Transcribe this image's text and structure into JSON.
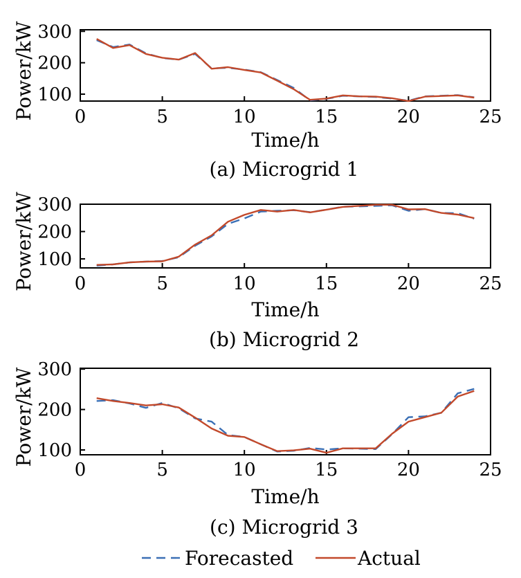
{
  "colors": {
    "forecasted": "#3a6fb5",
    "actual": "#c2492b",
    "axis": "#000000"
  },
  "legend": [
    {
      "key": "forecasted",
      "label": "Forecasted",
      "style": "dashed"
    },
    {
      "key": "actual",
      "label": "Actual",
      "style": "solid"
    }
  ],
  "chart_data": [
    {
      "type": "line",
      "caption": "(a) Microgrid 1",
      "xlabel": "Time/h",
      "ylabel": "Power/kW",
      "xlim": [
        0,
        25
      ],
      "ylim": [
        78,
        305
      ],
      "xticks": [
        0,
        5,
        10,
        15,
        20,
        25
      ],
      "yticks": [
        100,
        200,
        300
      ],
      "x": [
        1,
        2,
        3,
        4,
        5,
        6,
        7,
        8,
        9,
        10,
        11,
        12,
        13,
        14,
        15,
        16,
        17,
        18,
        19,
        20,
        21,
        22,
        23,
        24
      ],
      "series": [
        {
          "name": "Forecasted",
          "values": [
            272,
            250,
            258,
            230,
            215,
            210,
            228,
            182,
            184,
            178,
            170,
            145,
            120,
            80,
            85,
            95,
            93,
            91,
            86,
            79,
            93,
            95,
            97,
            90
          ]
        },
        {
          "name": "Actual",
          "values": [
            276,
            247,
            256,
            228,
            216,
            210,
            231,
            181,
            186,
            177,
            169,
            143,
            116,
            82,
            86,
            96,
            93,
            92,
            87,
            78,
            92,
            94,
            96,
            89
          ]
        }
      ]
    },
    {
      "type": "line",
      "caption": "(b) Microgrid 2",
      "xlabel": "Time/h",
      "ylabel": "Power/kW",
      "xlim": [
        0,
        25
      ],
      "ylim": [
        67,
        300
      ],
      "xticks": [
        0,
        5,
        10,
        15,
        20,
        25
      ],
      "yticks": [
        100,
        200,
        300
      ],
      "x": [
        1,
        2,
        3,
        4,
        5,
        6,
        7,
        8,
        9,
        10,
        11,
        12,
        13,
        14,
        15,
        16,
        17,
        18,
        19,
        20,
        21,
        22,
        23,
        24
      ],
      "series": [
        {
          "name": "Forecasted",
          "values": [
            75,
            80,
            87,
            90,
            92,
            106,
            148,
            182,
            228,
            248,
            273,
            276,
            278,
            271,
            280,
            291,
            292,
            294,
            296,
            276,
            282,
            268,
            267,
            247
          ]
        },
        {
          "name": "Actual",
          "values": [
            78,
            80,
            87,
            90,
            91,
            108,
            152,
            186,
            236,
            261,
            279,
            273,
            279,
            270,
            280,
            290,
            294,
            298,
            298,
            281,
            282,
            268,
            262,
            249
          ]
        }
      ]
    },
    {
      "type": "line",
      "caption": "(c) Microgrid 3",
      "xlabel": "Time/h",
      "ylabel": "Power/kW",
      "xlim": [
        0,
        25
      ],
      "ylim": [
        88,
        302
      ],
      "xticks": [
        0,
        5,
        10,
        15,
        20,
        25
      ],
      "yticks": [
        100,
        200,
        300
      ],
      "x": [
        1,
        2,
        3,
        4,
        5,
        6,
        7,
        8,
        9,
        10,
        11,
        12,
        13,
        14,
        15,
        16,
        17,
        18,
        19,
        20,
        21,
        22,
        23,
        24
      ],
      "series": [
        {
          "name": "Forecasted",
          "values": [
            221,
            223,
            215,
            204,
            216,
            203,
            178,
            170,
            137,
            132,
            114,
            96,
            98,
            105,
            101,
            104,
            103,
            102,
            139,
            181,
            183,
            192,
            240,
            251
          ]
        },
        {
          "name": "Actual",
          "values": [
            228,
            221,
            216,
            210,
            213,
            205,
            180,
            153,
            135,
            132,
            114,
            97,
            99,
            103,
            93,
            104,
            104,
            104,
            140,
            170,
            181,
            192,
            232,
            246
          ]
        }
      ]
    }
  ]
}
